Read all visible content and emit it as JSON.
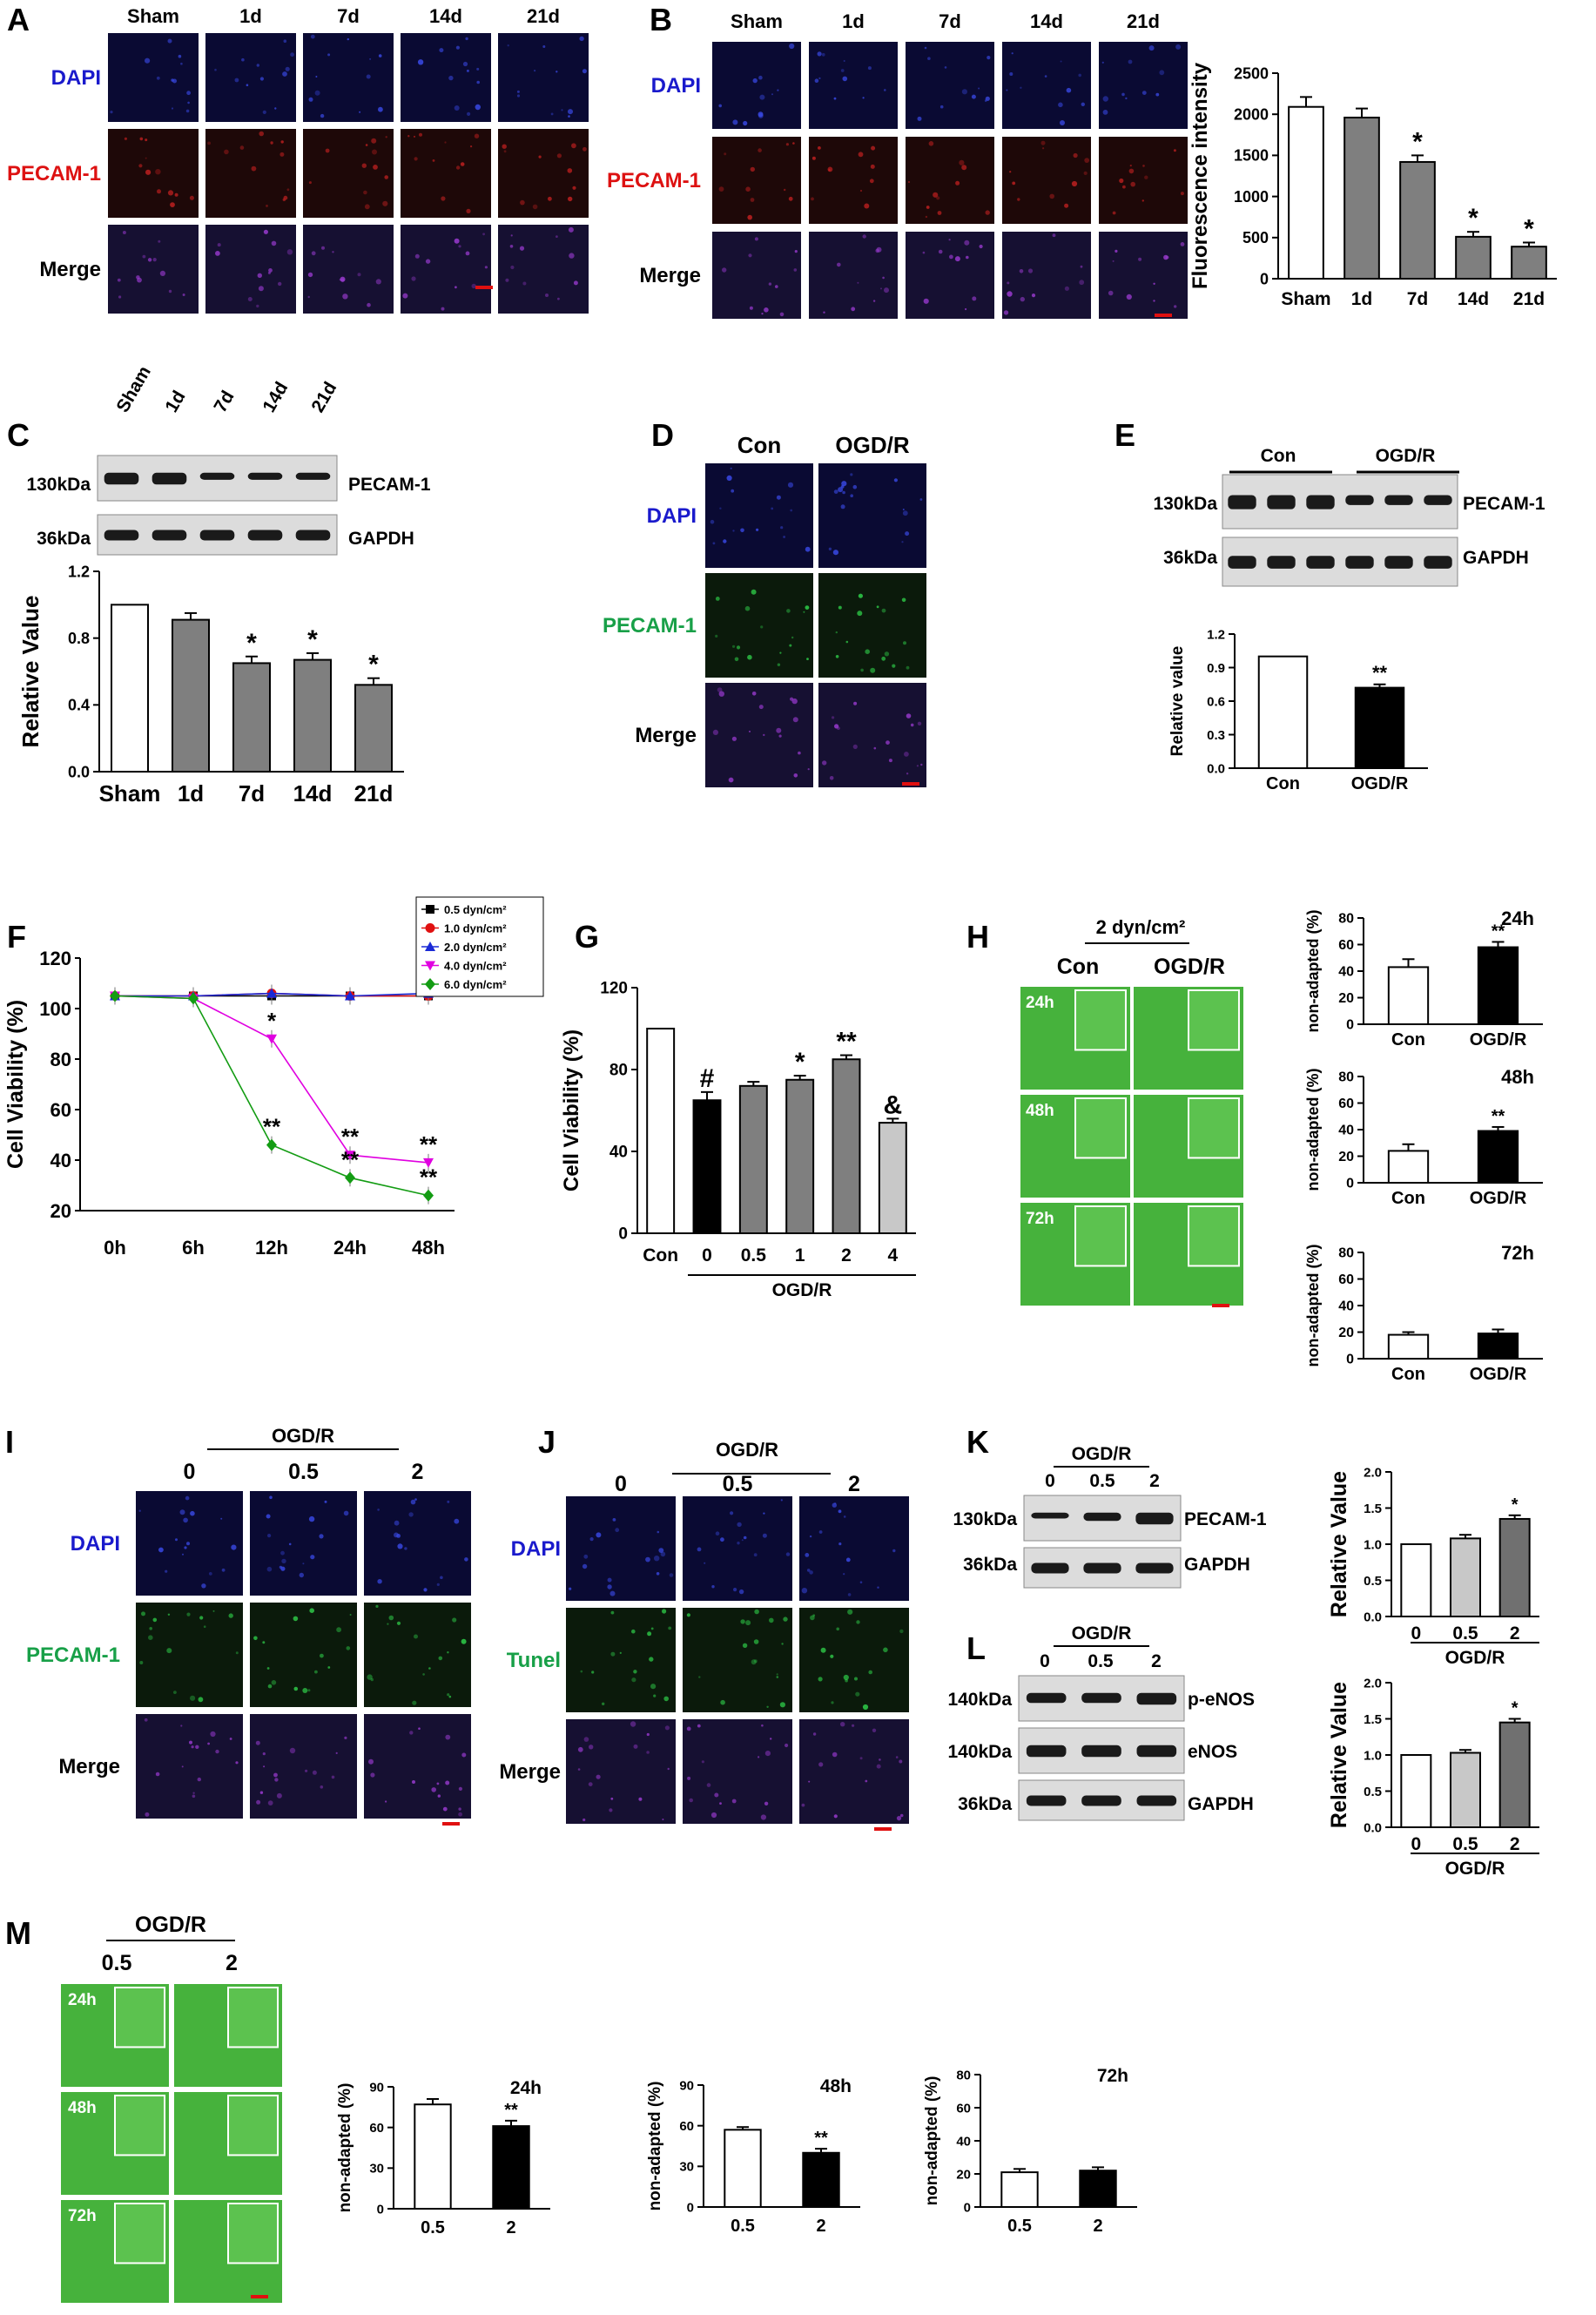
{
  "colors": {
    "dapi_label": "#1a1acc",
    "pecam_red_label": "#dd1111",
    "pecam_green_label": "#18a048",
    "tunel_label": "#18a048",
    "bar_white": "#ffffff",
    "bar_gray": "#7f7f7f",
    "bar_light": "#c8c8c8",
    "bar_dark": "#707070",
    "bar_black": "#000000",
    "scale_bar": "#e01010",
    "dapi_bg": "#0a0a33",
    "red_bg": "#1e0808",
    "merge_bg": "#161032",
    "green_bg": "#0b1a0b",
    "phase_green": "#46b23c",
    "blot_bg": "#dcdcdc",
    "band": "#1a1a1a"
  },
  "panels": {
    "A": {
      "letter": "A",
      "columns": [
        "Sham",
        "1d",
        "7d",
        "14d",
        "21d"
      ],
      "rows": [
        "DAPI",
        "PECAM-1",
        "Merge"
      ]
    },
    "B": {
      "letter": "B",
      "columns": [
        "Sham",
        "1d",
        "7d",
        "14d",
        "21d"
      ],
      "rows": [
        "DAPI",
        "PECAM-1",
        "Merge"
      ]
    },
    "C": {
      "letter": "C",
      "lanes": [
        "Sham",
        "1d",
        "7d",
        "14d",
        "21d"
      ],
      "blots": [
        {
          "size": "130kDa",
          "protein": "PECAM-1"
        },
        {
          "size": "36kDa",
          "protein": "GAPDH"
        }
      ]
    },
    "D": {
      "letter": "D",
      "columns": [
        "Con",
        "OGD/R"
      ],
      "rows": [
        "DAPI",
        "PECAM-1",
        "Merge"
      ]
    },
    "E": {
      "letter": "E",
      "groups": [
        "Con",
        "OGD/R"
      ],
      "blots": [
        {
          "size": "130kDa",
          "protein": "PECAM-1"
        },
        {
          "size": "36kDa",
          "protein": "GAPDH"
        }
      ]
    },
    "F": {
      "letter": "F"
    },
    "G": {
      "letter": "G"
    },
    "H": {
      "letter": "H",
      "condition": "2 dyn/cm²",
      "columns": [
        "Con",
        "OGD/R"
      ],
      "rows": [
        "24h",
        "48h",
        "72h"
      ]
    },
    "I": {
      "letter": "I",
      "group": "OGD/R",
      "columns": [
        "0",
        "0.5",
        "2"
      ],
      "rows": [
        "DAPI",
        "PECAM-1",
        "Merge"
      ]
    },
    "J": {
      "letter": "J",
      "group": "OGD/R",
      "columns": [
        "0",
        "0.5",
        "2"
      ],
      "rows": [
        "DAPI",
        "Tunel",
        "Merge"
      ]
    },
    "K": {
      "letter": "K",
      "group": "OGD/R",
      "lanes": [
        "0",
        "0.5",
        "2"
      ],
      "blots": [
        {
          "size": "130kDa",
          "protein": "PECAM-1"
        },
        {
          "size": "36kDa",
          "protein": "GAPDH"
        }
      ]
    },
    "L": {
      "letter": "L",
      "group": "OGD/R",
      "lanes": [
        "0",
        "0.5",
        "2"
      ],
      "blots": [
        {
          "size": "140kDa",
          "protein": "p-eNOS"
        },
        {
          "size": "140kDa",
          "protein": "eNOS"
        },
        {
          "size": "36kDa",
          "protein": "GAPDH"
        }
      ]
    },
    "M": {
      "letter": "M",
      "group": "OGD/R",
      "columns": [
        "0.5",
        "2"
      ],
      "rows": [
        "24h",
        "48h",
        "72h"
      ]
    }
  },
  "chart_data": [
    {
      "id": "B-bar",
      "type": "bar",
      "categories": [
        "Sham",
        "1d",
        "7d",
        "14d",
        "21d"
      ],
      "values": [
        2090,
        1960,
        1420,
        510,
        390
      ],
      "errors": [
        120,
        110,
        80,
        60,
        50
      ],
      "significance": [
        "",
        "",
        "*",
        "*",
        "*"
      ],
      "fills": [
        "#ffffff",
        "#7f7f7f",
        "#7f7f7f",
        "#7f7f7f",
        "#7f7f7f"
      ],
      "ylabel": "Fluorescence intensity",
      "ylim": [
        0,
        2500
      ],
      "yticks": [
        0,
        500,
        1000,
        1500,
        2000,
        2500
      ]
    },
    {
      "id": "C-bar",
      "type": "bar",
      "categories": [
        "Sham",
        "1d",
        "7d",
        "14d",
        "21d"
      ],
      "values": [
        1.0,
        0.91,
        0.65,
        0.67,
        0.52
      ],
      "errors": [
        0.0,
        0.04,
        0.04,
        0.04,
        0.04
      ],
      "significance": [
        "",
        "",
        "*",
        "*",
        "*"
      ],
      "fills": [
        "#ffffff",
        "#7f7f7f",
        "#7f7f7f",
        "#7f7f7f",
        "#7f7f7f"
      ],
      "ylabel": "Relative Value",
      "ylim": [
        0,
        1.2
      ],
      "yticks": [
        0.0,
        0.4,
        0.8,
        1.2
      ],
      "tick_labels": [
        "0.0",
        "0.4",
        "0.8",
        "1.2"
      ]
    },
    {
      "id": "E-bar",
      "type": "bar",
      "categories": [
        "Con",
        "OGD/R"
      ],
      "values": [
        1.0,
        0.72
      ],
      "errors": [
        0.0,
        0.03
      ],
      "significance": [
        "",
        "**"
      ],
      "fills": [
        "#ffffff",
        "#000000"
      ],
      "ylabel": "Relative value",
      "ylim": [
        0,
        1.2
      ],
      "yticks": [
        0.0,
        0.3,
        0.6,
        0.9,
        1.2
      ],
      "tick_labels": [
        "0.0",
        "0.3",
        "0.6",
        "0.9",
        "1.2"
      ]
    },
    {
      "id": "F-line",
      "type": "line",
      "x": [
        "0h",
        "6h",
        "12h",
        "24h",
        "48h"
      ],
      "ylabel": "Cell Viability (%)",
      "ylim": [
        20,
        120
      ],
      "yticks": [
        20,
        40,
        60,
        80,
        100,
        120
      ],
      "legend_position": "top-right",
      "series": [
        {
          "name": "0.5 dyn/cm²",
          "color": "#000000",
          "marker": "square",
          "values": [
            105,
            105,
            105,
            105,
            105
          ]
        },
        {
          "name": "1.0 dyn/cm²",
          "color": "#e01010",
          "marker": "circle",
          "values": [
            105,
            105,
            106,
            105,
            105
          ]
        },
        {
          "name": "2.0 dyn/cm²",
          "color": "#1a2ad6",
          "marker": "triangle-up",
          "values": [
            105,
            105,
            106,
            105,
            106
          ]
        },
        {
          "name": "4.0 dyn/cm²",
          "color": "#e000e0",
          "marker": "triangle-down",
          "values": [
            105,
            104,
            88,
            42,
            39
          ]
        },
        {
          "name": "6.0 dyn/cm²",
          "color": "#139c13",
          "marker": "diamond",
          "values": [
            105,
            104,
            46,
            33,
            26
          ]
        }
      ],
      "annotations": [
        {
          "x": "12h",
          "y": 88,
          "text": "*"
        },
        {
          "x": "12h",
          "y": 46,
          "text": "**"
        },
        {
          "x": "24h",
          "y": 42,
          "text": "**"
        },
        {
          "x": "24h",
          "y": 33,
          "text": "**"
        },
        {
          "x": "48h",
          "y": 39,
          "text": "**"
        },
        {
          "x": "48h",
          "y": 26,
          "text": "**"
        }
      ]
    },
    {
      "id": "G-bar",
      "type": "bar",
      "categories": [
        "Con",
        "0",
        "0.5",
        "1",
        "2",
        "4"
      ],
      "values": [
        100,
        65,
        72,
        75,
        85,
        54
      ],
      "errors": [
        0,
        4,
        2,
        2,
        2,
        2
      ],
      "significance": [
        "",
        "#",
        "",
        "*",
        "**",
        "&"
      ],
      "fills": [
        "#ffffff",
        "#000000",
        "#7f7f7f",
        "#7f7f7f",
        "#7f7f7f",
        "#c8c8c8"
      ],
      "ylabel": "Cell Viability (%)",
      "ylim": [
        0,
        120
      ],
      "yticks": [
        0,
        40,
        80,
        120
      ],
      "group_label": "OGD/R"
    },
    {
      "id": "H-24h",
      "type": "bar",
      "title": "24h",
      "categories": [
        "Con",
        "OGD/R"
      ],
      "values": [
        43,
        58
      ],
      "errors": [
        6,
        4
      ],
      "significance": [
        "",
        "**"
      ],
      "fills": [
        "#ffffff",
        "#000000"
      ],
      "ylabel": "non-adapted (%)",
      "ylim": [
        0,
        80
      ],
      "yticks": [
        0,
        20,
        40,
        60,
        80
      ]
    },
    {
      "id": "H-48h",
      "type": "bar",
      "title": "48h",
      "categories": [
        "Con",
        "OGD/R"
      ],
      "values": [
        24,
        39
      ],
      "errors": [
        5,
        3
      ],
      "significance": [
        "",
        "**"
      ],
      "fills": [
        "#ffffff",
        "#000000"
      ],
      "ylabel": "non-adapted (%)",
      "ylim": [
        0,
        80
      ],
      "yticks": [
        0,
        20,
        40,
        60,
        80
      ]
    },
    {
      "id": "H-72h",
      "type": "bar",
      "title": "72h",
      "categories": [
        "Con",
        "OGD/R"
      ],
      "values": [
        18,
        19
      ],
      "errors": [
        2,
        3
      ],
      "significance": [
        "",
        ""
      ],
      "fills": [
        "#ffffff",
        "#000000"
      ],
      "ylabel": "non-adapted (%)",
      "ylim": [
        0,
        80
      ],
      "yticks": [
        0,
        20,
        40,
        60,
        80
      ]
    },
    {
      "id": "K-bar",
      "type": "bar",
      "categories": [
        "0",
        "0.5",
        "2"
      ],
      "values": [
        1.0,
        1.08,
        1.35
      ],
      "errors": [
        0.0,
        0.05,
        0.05
      ],
      "significance": [
        "",
        "",
        "*"
      ],
      "fills": [
        "#ffffff",
        "#c8c8c8",
        "#707070"
      ],
      "ylabel": "Relative Value",
      "ylim": [
        0,
        2.0
      ],
      "yticks": [
        0.0,
        0.5,
        1.0,
        1.5,
        2.0
      ],
      "tick_labels": [
        "0.0",
        "0.5",
        "1.0",
        "1.5",
        "2.0"
      ],
      "group_label": "OGD/R"
    },
    {
      "id": "L-bar",
      "type": "bar",
      "categories": [
        "0",
        "0.5",
        "2"
      ],
      "values": [
        1.0,
        1.03,
        1.45
      ],
      "errors": [
        0.0,
        0.04,
        0.05
      ],
      "significance": [
        "",
        "",
        "*"
      ],
      "fills": [
        "#ffffff",
        "#c8c8c8",
        "#707070"
      ],
      "ylabel": "Relative Value",
      "ylim": [
        0,
        2.0
      ],
      "yticks": [
        0.0,
        0.5,
        1.0,
        1.5,
        2.0
      ],
      "tick_labels": [
        "0.0",
        "0.5",
        "1.0",
        "1.5",
        "2.0"
      ],
      "group_label": "OGD/R"
    },
    {
      "id": "M-24h",
      "type": "bar",
      "title": "24h",
      "categories": [
        "0.5",
        "2"
      ],
      "values": [
        77,
        61
      ],
      "errors": [
        4,
        4
      ],
      "significance": [
        "",
        "**"
      ],
      "fills": [
        "#ffffff",
        "#000000"
      ],
      "ylabel": "non-adapted (%)",
      "ylim": [
        0,
        90
      ],
      "yticks": [
        0,
        30,
        60,
        90
      ]
    },
    {
      "id": "M-48h",
      "type": "bar",
      "title": "48h",
      "categories": [
        "0.5",
        "2"
      ],
      "values": [
        57,
        40
      ],
      "errors": [
        2,
        3
      ],
      "significance": [
        "",
        "**"
      ],
      "fills": [
        "#ffffff",
        "#000000"
      ],
      "ylabel": "non-adapted (%)",
      "ylim": [
        0,
        90
      ],
      "yticks": [
        0,
        30,
        60,
        90
      ]
    },
    {
      "id": "M-72h",
      "type": "bar",
      "title": "72h",
      "categories": [
        "0.5",
        "2"
      ],
      "values": [
        21,
        22
      ],
      "errors": [
        2,
        2
      ],
      "significance": [
        "",
        ""
      ],
      "fills": [
        "#ffffff",
        "#000000"
      ],
      "ylabel": "non-adapted (%)",
      "ylim": [
        0,
        80
      ],
      "yticks": [
        0,
        20,
        40,
        60,
        80
      ]
    }
  ]
}
